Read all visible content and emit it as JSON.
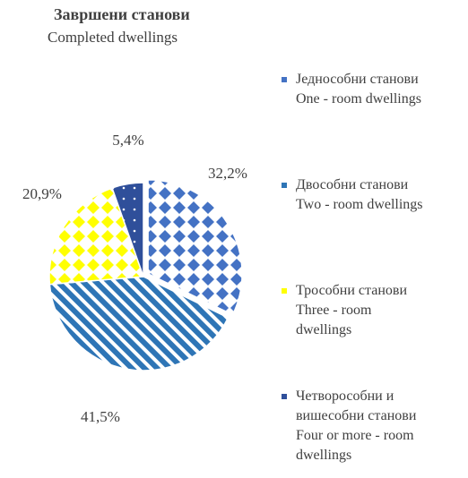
{
  "chart_data": {
    "type": "pie",
    "title": "Завршени станови",
    "subtitle": "Completed dwellings",
    "categories": [
      "Једнособни  станови\nOne - room dwellings",
      "Двособни станови\nTwo - room dwellings",
      "Трособни станови\nThree - room\ndwellings",
      "Четворособни и\nвишесобни  станови\nFour or more - room\ndwellings"
    ],
    "values": [
      32.2,
      41.5,
      20.9,
      5.4
    ],
    "value_labels": [
      "32,2%",
      "41,5%",
      "20,9%",
      "5,4%"
    ],
    "colors": [
      "#4472c4",
      "#2e75b6",
      "#ffff00",
      "#2f4f9a"
    ],
    "patterns": [
      "diamond",
      "stripe",
      "diamond",
      "dot"
    ]
  }
}
